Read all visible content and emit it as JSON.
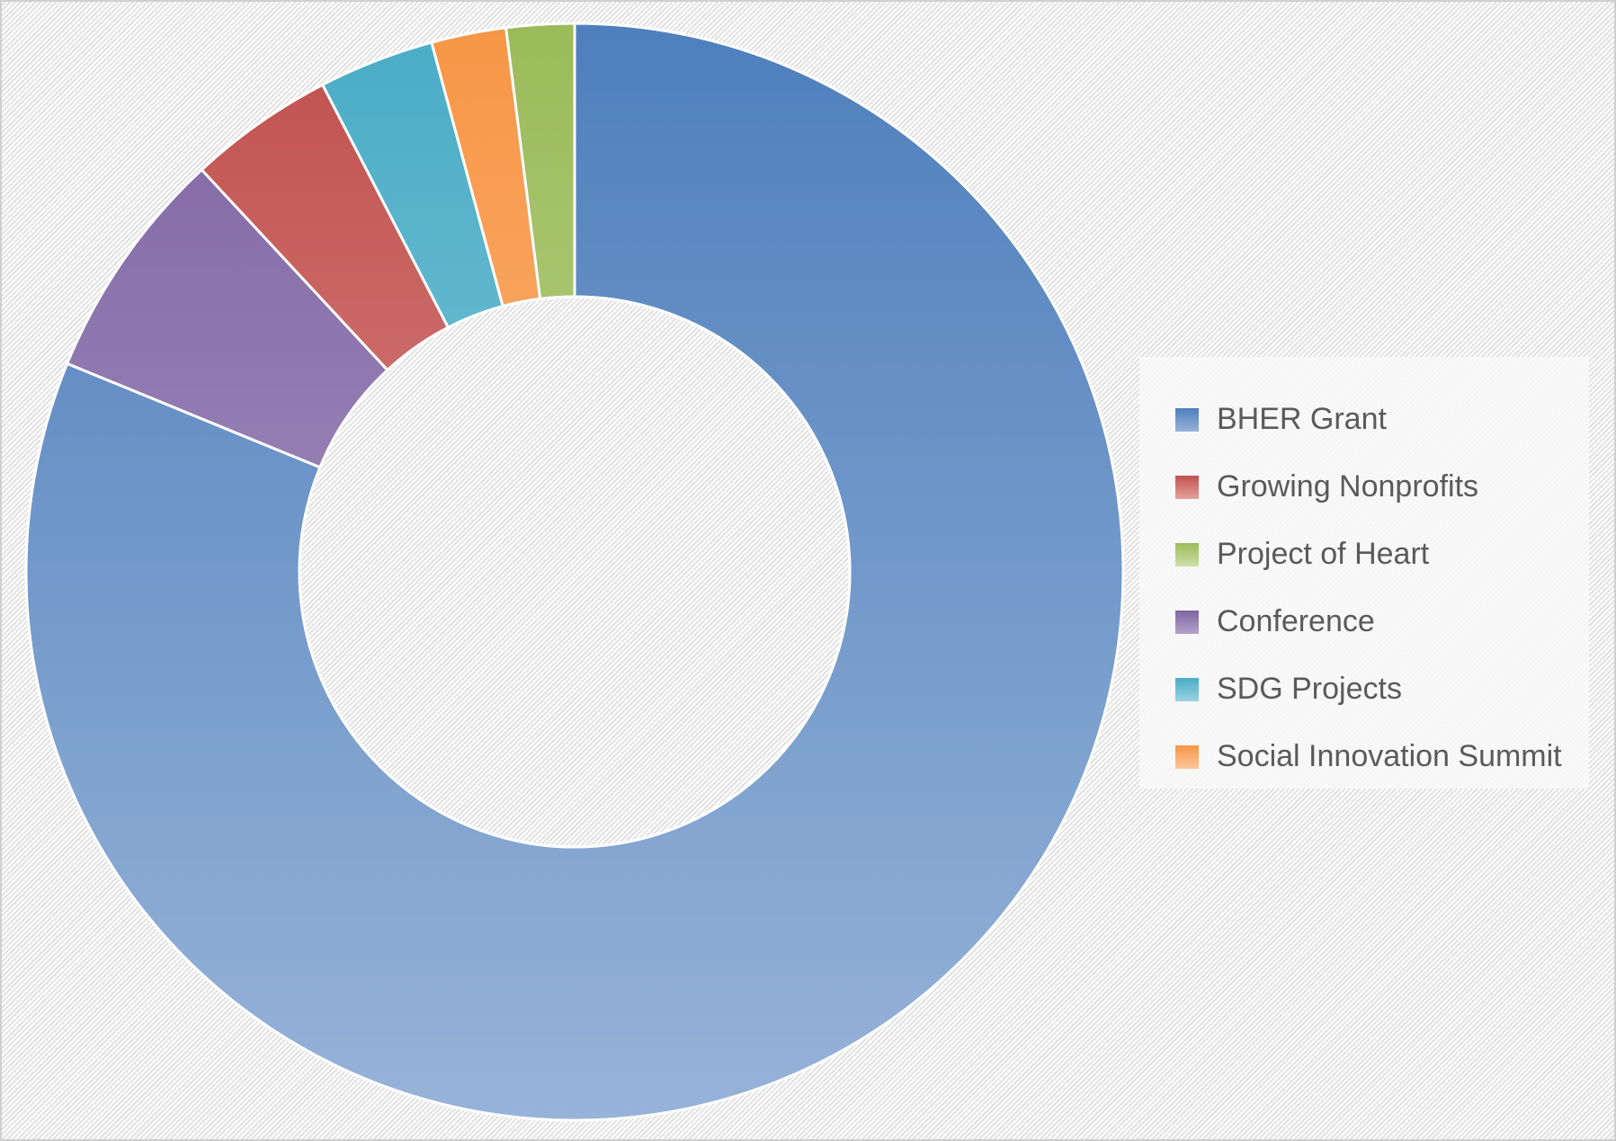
{
  "chart_data": {
    "type": "pie",
    "donut": true,
    "legend_position": "right",
    "slices": [
      {
        "label": "BHER Grant",
        "value": 81.2,
        "color": "#4e7fbc",
        "color_light": "#97b3d8"
      },
      {
        "label": "Conference",
        "value": 6.9,
        "color": "#7f65a3",
        "color_light": "#b3a2cb"
      },
      {
        "label": "Growing Nonprofits",
        "value": 4.3,
        "color": "#c0504d",
        "color_light": "#e4a29f"
      },
      {
        "label": "SDG Projects",
        "value": 3.4,
        "color": "#4aacc6",
        "color_light": "#99d3e2"
      },
      {
        "label": "Social Innovation Summit",
        "value": 2.2,
        "color": "#f79646",
        "color_light": "#fcc79c"
      },
      {
        "label": "Project of Heart",
        "value": 2.0,
        "color": "#9bbb59",
        "color_light": "#cde0a9"
      }
    ],
    "legend_order": [
      "BHER Grant",
      "Growing Nonprofits",
      "Project of Heart",
      "Conference",
      "SDG Projects",
      "Social Innovation Summit"
    ]
  }
}
